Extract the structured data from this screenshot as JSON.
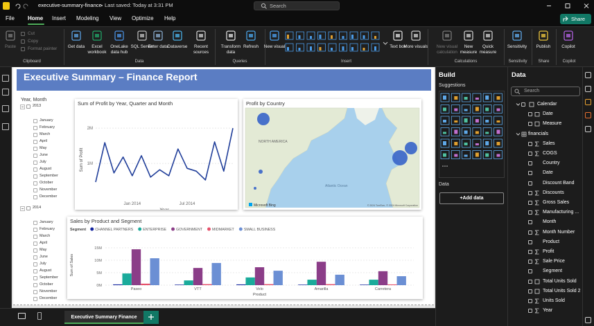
{
  "title_bar": {
    "file_name": "executive-summary-finance",
    "save_status": "Last saved: Today at 3:31 PM",
    "search": "Search"
  },
  "menu": {
    "tabs": [
      "File",
      "Home",
      "Insert",
      "Modeling",
      "View",
      "Optimize",
      "Help"
    ],
    "active_tab": 1,
    "share": "Share"
  },
  "ribbon": {
    "groups": [
      {
        "label": "Clipboard",
        "buttons": [
          "Paste"
        ],
        "small_buttons": [
          "Cut",
          "Copy",
          "Format painter"
        ]
      },
      {
        "label": "Data",
        "buttons": [
          "Get data",
          "Excel workbook",
          "OneLake data hub",
          "SQL Server",
          "Enter data",
          "Dataverse",
          "Recent sources"
        ]
      },
      {
        "label": "Queries",
        "buttons": [
          "Transform data",
          "Refresh"
        ]
      },
      {
        "label": "Insert",
        "buttons": [
          "New visual",
          "Text box",
          "More visuals"
        ]
      },
      {
        "label": "Calculations",
        "buttons": [
          "New visual calculation",
          "New measure",
          "Quick measure"
        ]
      },
      {
        "label": "Sensitivity",
        "buttons": [
          "Sensitivity"
        ]
      },
      {
        "label": "Share",
        "buttons": [
          "Publish"
        ]
      },
      {
        "label": "Copilot",
        "buttons": [
          "Copilot"
        ]
      }
    ]
  },
  "report": {
    "title": "Executive Summary – Finance Report",
    "slicer": {
      "title": "Year, Month",
      "years": [
        {
          "year": "2013",
          "months": [
            "January",
            "February",
            "March",
            "April",
            "May",
            "June",
            "July",
            "August",
            "September",
            "October",
            "November",
            "December"
          ]
        },
        {
          "year": "2014",
          "months": [
            "January",
            "February",
            "March",
            "April",
            "May",
            "June",
            "July",
            "August",
            "September",
            "October",
            "November",
            "December"
          ]
        }
      ]
    },
    "map": {
      "title": "Profit by Country",
      "labels": [
        "NORTH AMERICA",
        "Atlantic Ocean"
      ],
      "attribution": "Microsoft Bing",
      "copyright": "© 2024 TomTom, © 2024 Microsoft Corporation"
    }
  },
  "chart_data": [
    {
      "type": "line",
      "title": "Sum of Profit by Year, Quarter and Month",
      "x_label": "Year",
      "y_label": "Sum of Profit",
      "categories": [
        null,
        null,
        null,
        null,
        "Jan 2014",
        null,
        null,
        null,
        null,
        null,
        "Jul 2014",
        null,
        null,
        null,
        null,
        null
      ],
      "values": [
        470000,
        1590000,
        730000,
        1180000,
        650000,
        1220000,
        610000,
        820000,
        650000,
        1410000,
        860000,
        780000,
        530000,
        1610000,
        780000,
        2000000
      ],
      "color": "#1f3d99",
      "ylim": [
        0,
        2200000
      ],
      "yticks": [
        {
          "value": 1000000,
          "label": "1M"
        },
        {
          "value": 2000000,
          "label": "2M"
        }
      ],
      "grid": true
    },
    {
      "type": "bar",
      "title": "Sales by Product and Segment",
      "legend_title": "Segment",
      "x_label": "Product",
      "y_label": "Sum of Sales",
      "categories": [
        "Paseo",
        "VTT",
        "Velo",
        "Amarilla",
        "Carretera"
      ],
      "series": [
        {
          "name": "CHANNEL PARTNERS",
          "color": "#12239e",
          "values": [
            300000,
            200000,
            300000,
            200000,
            200000
          ]
        },
        {
          "name": "ENTERPRISE",
          "color": "#1aab9b",
          "values": [
            4700000,
            1900000,
            3100000,
            2200000,
            2200000
          ]
        },
        {
          "name": "GOVERNMENT",
          "color": "#8b3d88",
          "values": [
            14400000,
            6900000,
            7200000,
            9400000,
            5600000
          ]
        },
        {
          "name": "MIDMARKET",
          "color": "#e6526b",
          "values": [
            600000,
            400000,
            400000,
            400000,
            300000
          ]
        },
        {
          "name": "SMALL BUSINESS",
          "color": "#6b8fd4",
          "values": [
            10800000,
            8900000,
            5800000,
            4200000,
            3600000
          ]
        }
      ],
      "ylim": [
        0,
        16000000
      ],
      "yticks": [
        {
          "value": 0,
          "label": "0M"
        },
        {
          "value": 5000000,
          "label": "5M"
        },
        {
          "value": 10000000,
          "label": "10M"
        },
        {
          "value": 15000000,
          "label": "15M"
        }
      ],
      "grid": true
    }
  ],
  "build_pane": {
    "title": "Build",
    "suggestions": "Suggestions",
    "data": "Data",
    "add_data": "+Add data"
  },
  "data_pane": {
    "title": "Data",
    "search": "Search",
    "tables": [
      {
        "name": "Calendar",
        "fields": [
          {
            "name": "Date",
            "kind": "date"
          },
          {
            "name": "Measure",
            "kind": "measure"
          }
        ]
      },
      {
        "name": "financials",
        "fields": [
          {
            "name": "Sales",
            "kind": "sum"
          },
          {
            "name": "COGS",
            "kind": "sum"
          },
          {
            "name": "Country",
            "kind": "text"
          },
          {
            "name": "Date",
            "kind": "text"
          },
          {
            "name": "Discount Band",
            "kind": "text"
          },
          {
            "name": "Discounts",
            "kind": "sum"
          },
          {
            "name": "Gross Sales",
            "kind": "sum"
          },
          {
            "name": "Manufacturing ...",
            "kind": "sum"
          },
          {
            "name": "Month",
            "kind": "text"
          },
          {
            "name": "Month Number",
            "kind": "sum"
          },
          {
            "name": "Product",
            "kind": "text"
          },
          {
            "name": "Profit",
            "kind": "sum"
          },
          {
            "name": "Sale Price",
            "kind": "sum"
          },
          {
            "name": "Segment",
            "kind": "text"
          },
          {
            "name": "Total Units Sold",
            "kind": "measure"
          },
          {
            "name": "Total Units Sold 2",
            "kind": "measure"
          },
          {
            "name": "Units Sold",
            "kind": "sum"
          },
          {
            "name": "Year",
            "kind": "sum"
          }
        ]
      }
    ]
  },
  "page_tabs": [
    "Executive Summary Finance"
  ]
}
